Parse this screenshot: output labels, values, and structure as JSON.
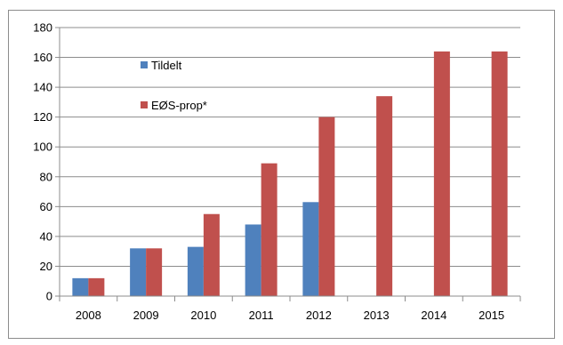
{
  "chart_data": {
    "type": "bar",
    "title": "",
    "xlabel": "",
    "ylabel": "",
    "categories": [
      "2008",
      "2009",
      "2010",
      "2011",
      "2012",
      "2013",
      "2014",
      "2015"
    ],
    "series": [
      {
        "name": "Tildelt",
        "color": "#4f81bd",
        "values": [
          12,
          32,
          33,
          48,
          63,
          null,
          null,
          null
        ]
      },
      {
        "name": "EØS-prop*",
        "color": "#c0504d",
        "values": [
          12,
          32,
          55,
          89,
          120,
          134,
          164,
          164
        ]
      }
    ],
    "ylim": [
      0,
      180
    ],
    "yticks": [
      0,
      20,
      40,
      60,
      80,
      100,
      120,
      140,
      160,
      180
    ],
    "grid": true,
    "legend": "top-left inside plot"
  }
}
